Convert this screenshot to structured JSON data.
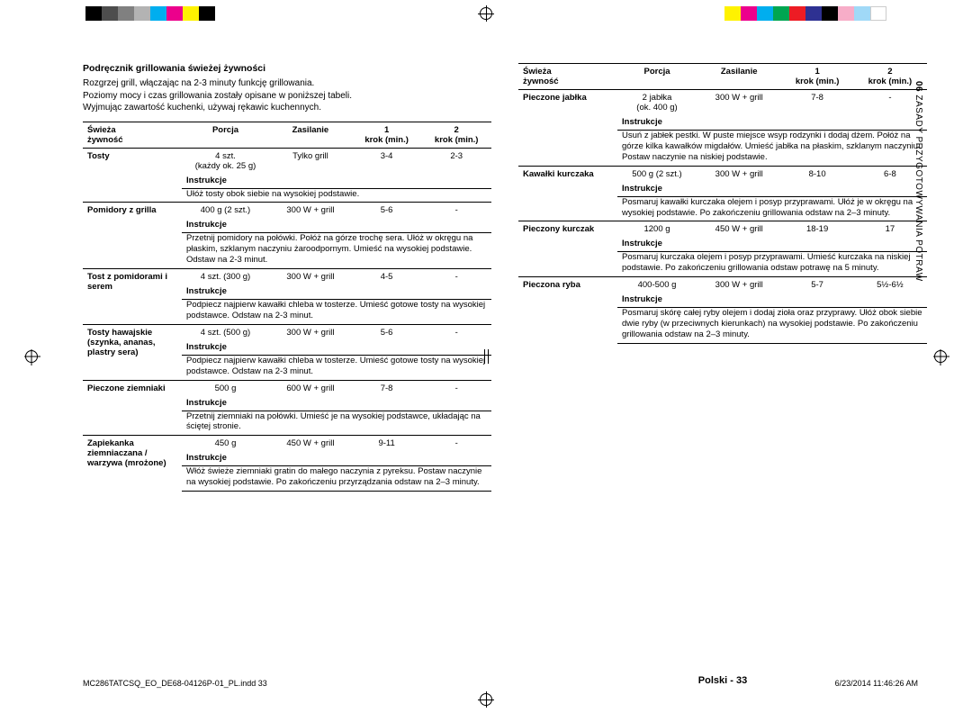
{
  "colorbar_left": [
    "#000000",
    "#4d4d4d",
    "#808080",
    "#b3b3b3",
    "#00aeef",
    "#ec008c",
    "#fff200",
    "#000000"
  ],
  "colorbar_right": [
    "#fff200",
    "#ec008c",
    "#00aeef",
    "#00a651",
    "#ed1c24",
    "#2e3192",
    "#000000",
    "#f7adc8",
    "#a0d9f7",
    "#ffffff"
  ],
  "section_title": "Podręcznik grillowania świeżej żywności",
  "intro": [
    "Rozgrzej grill, włączając na 2-3 minuty funkcję grillowania.",
    "Poziomy mocy i czas grillowania zostały opisane w poniższej tabeli.",
    "Wyjmując zawartość kuchenki, używaj rękawic kuchennych."
  ],
  "headers": {
    "food": "Świeża żywność",
    "portion": "Porcja",
    "power": "Zasilanie",
    "step1": "1 krok (min.)",
    "step2": "2 krok (min.)"
  },
  "instrukcje_label": "Instrukcje",
  "left_rows": [
    {
      "food": "Tosty",
      "portion": "4 szt.\n(każdy ok. 25 g)",
      "power": "Tylko grill",
      "s1": "3-4",
      "s2": "2-3",
      "instr": "Ułóż tosty obok siebie na wysokiej podstawie."
    },
    {
      "food": "Pomidory z grilla",
      "portion": "400 g (2 szt.)",
      "power": "300 W + grill",
      "s1": "5-6",
      "s2": "-",
      "instr": "Przetnij pomidory na połówki. Połóż na górze trochę sera. Ułóż w okręgu na płaskim, szklanym naczyniu żaroodpornym. Umieść na wysokiej podstawie. Odstaw na 2-3 minut."
    },
    {
      "food": "Tost z pomidorami i serem",
      "portion": "4 szt. (300 g)",
      "power": "300 W + grill",
      "s1": "4-5",
      "s2": "-",
      "instr": "Podpiecz najpierw kawałki chleba w tosterze. Umieść gotowe tosty na wysokiej podstawce. Odstaw na 2-3 minut."
    },
    {
      "food": "Tosty hawajskie (szynka, ananas, plastry sera)",
      "portion": "4 szt. (500 g)",
      "power": "300 W + grill",
      "s1": "5-6",
      "s2": "-",
      "instr": "Podpiecz najpierw kawałki chleba w tosterze. Umieść gotowe tosty na wysokiej podstawce. Odstaw na 2-3 minut."
    },
    {
      "food": "Pieczone ziemniaki",
      "portion": "500 g",
      "power": "600 W + grill",
      "s1": "7-8",
      "s2": "-",
      "instr": "Przetnij ziemniaki na połówki. Umieść je na wysokiej podstawce, układając na ściętej stronie."
    },
    {
      "food": "Zapiekanka ziemniaczana / warzywa (mrożone)",
      "portion": "450 g",
      "power": "450 W + grill",
      "s1": "9-11",
      "s2": "-",
      "instr": "Włóż świeże ziemniaki gratin do małego naczynia z pyreksu. Postaw naczynie na wysokiej podstawie. Po zakończeniu przyrządzania odstaw na 2–3 minuty."
    }
  ],
  "right_rows": [
    {
      "food": "Pieczone jabłka",
      "portion": "2 jabłka\n(ok. 400 g)",
      "power": "300 W + grill",
      "s1": "7-8",
      "s2": "-",
      "instr": "Usuń z jabłek pestki. W puste miejsce wsyp rodzynki i dodaj dżem. Połóż na górze kilka kawałków migdałów. Umieść jabłka na płaskim, szklanym naczyniu. Postaw naczynie na niskiej podstawie."
    },
    {
      "food": "Kawałki kurczaka",
      "portion": "500 g (2 szt.)",
      "power": "300 W + grill",
      "s1": "8-10",
      "s2": "6-8",
      "instr": "Posmaruj kawałki kurczaka olejem i posyp przyprawami. Ułóż je w okręgu na wysokiej podstawie. Po zakończeniu grillowania odstaw na 2–3 minuty."
    },
    {
      "food": "Pieczony kurczak",
      "portion": "1200 g",
      "power": "450 W + grill",
      "s1": "18-19",
      "s2": "17",
      "instr": "Posmaruj kurczaka olejem i posyp przyprawami. Umieść kurczaka na niskiej podstawie. Po zakończeniu grillowania odstaw potrawę na 5 minuty."
    },
    {
      "food": "Pieczona ryba",
      "portion": "400-500 g",
      "power": "300 W + grill",
      "s1": "5-7",
      "s2": "5½-6½",
      "instr": "Posmaruj skórę całej ryby olejem i dodaj zioła oraz przyprawy. Ułóż obok siebie dwie ryby (w przeciwnych kierunkach) na wysokiej podstawie. Po zakończeniu grillowania odstaw na 2–3 minuty."
    }
  ],
  "vertical_label_num": "06",
  "vertical_label_text": "  ZASADY PRZYGOTOWYWANIA POTRAW",
  "page_number": "Polski - 33",
  "footer_left": "MC286TATCSQ_EO_DE68-04126P-01_PL.indd   33",
  "footer_right": "6/23/2014   11:46:26 AM"
}
